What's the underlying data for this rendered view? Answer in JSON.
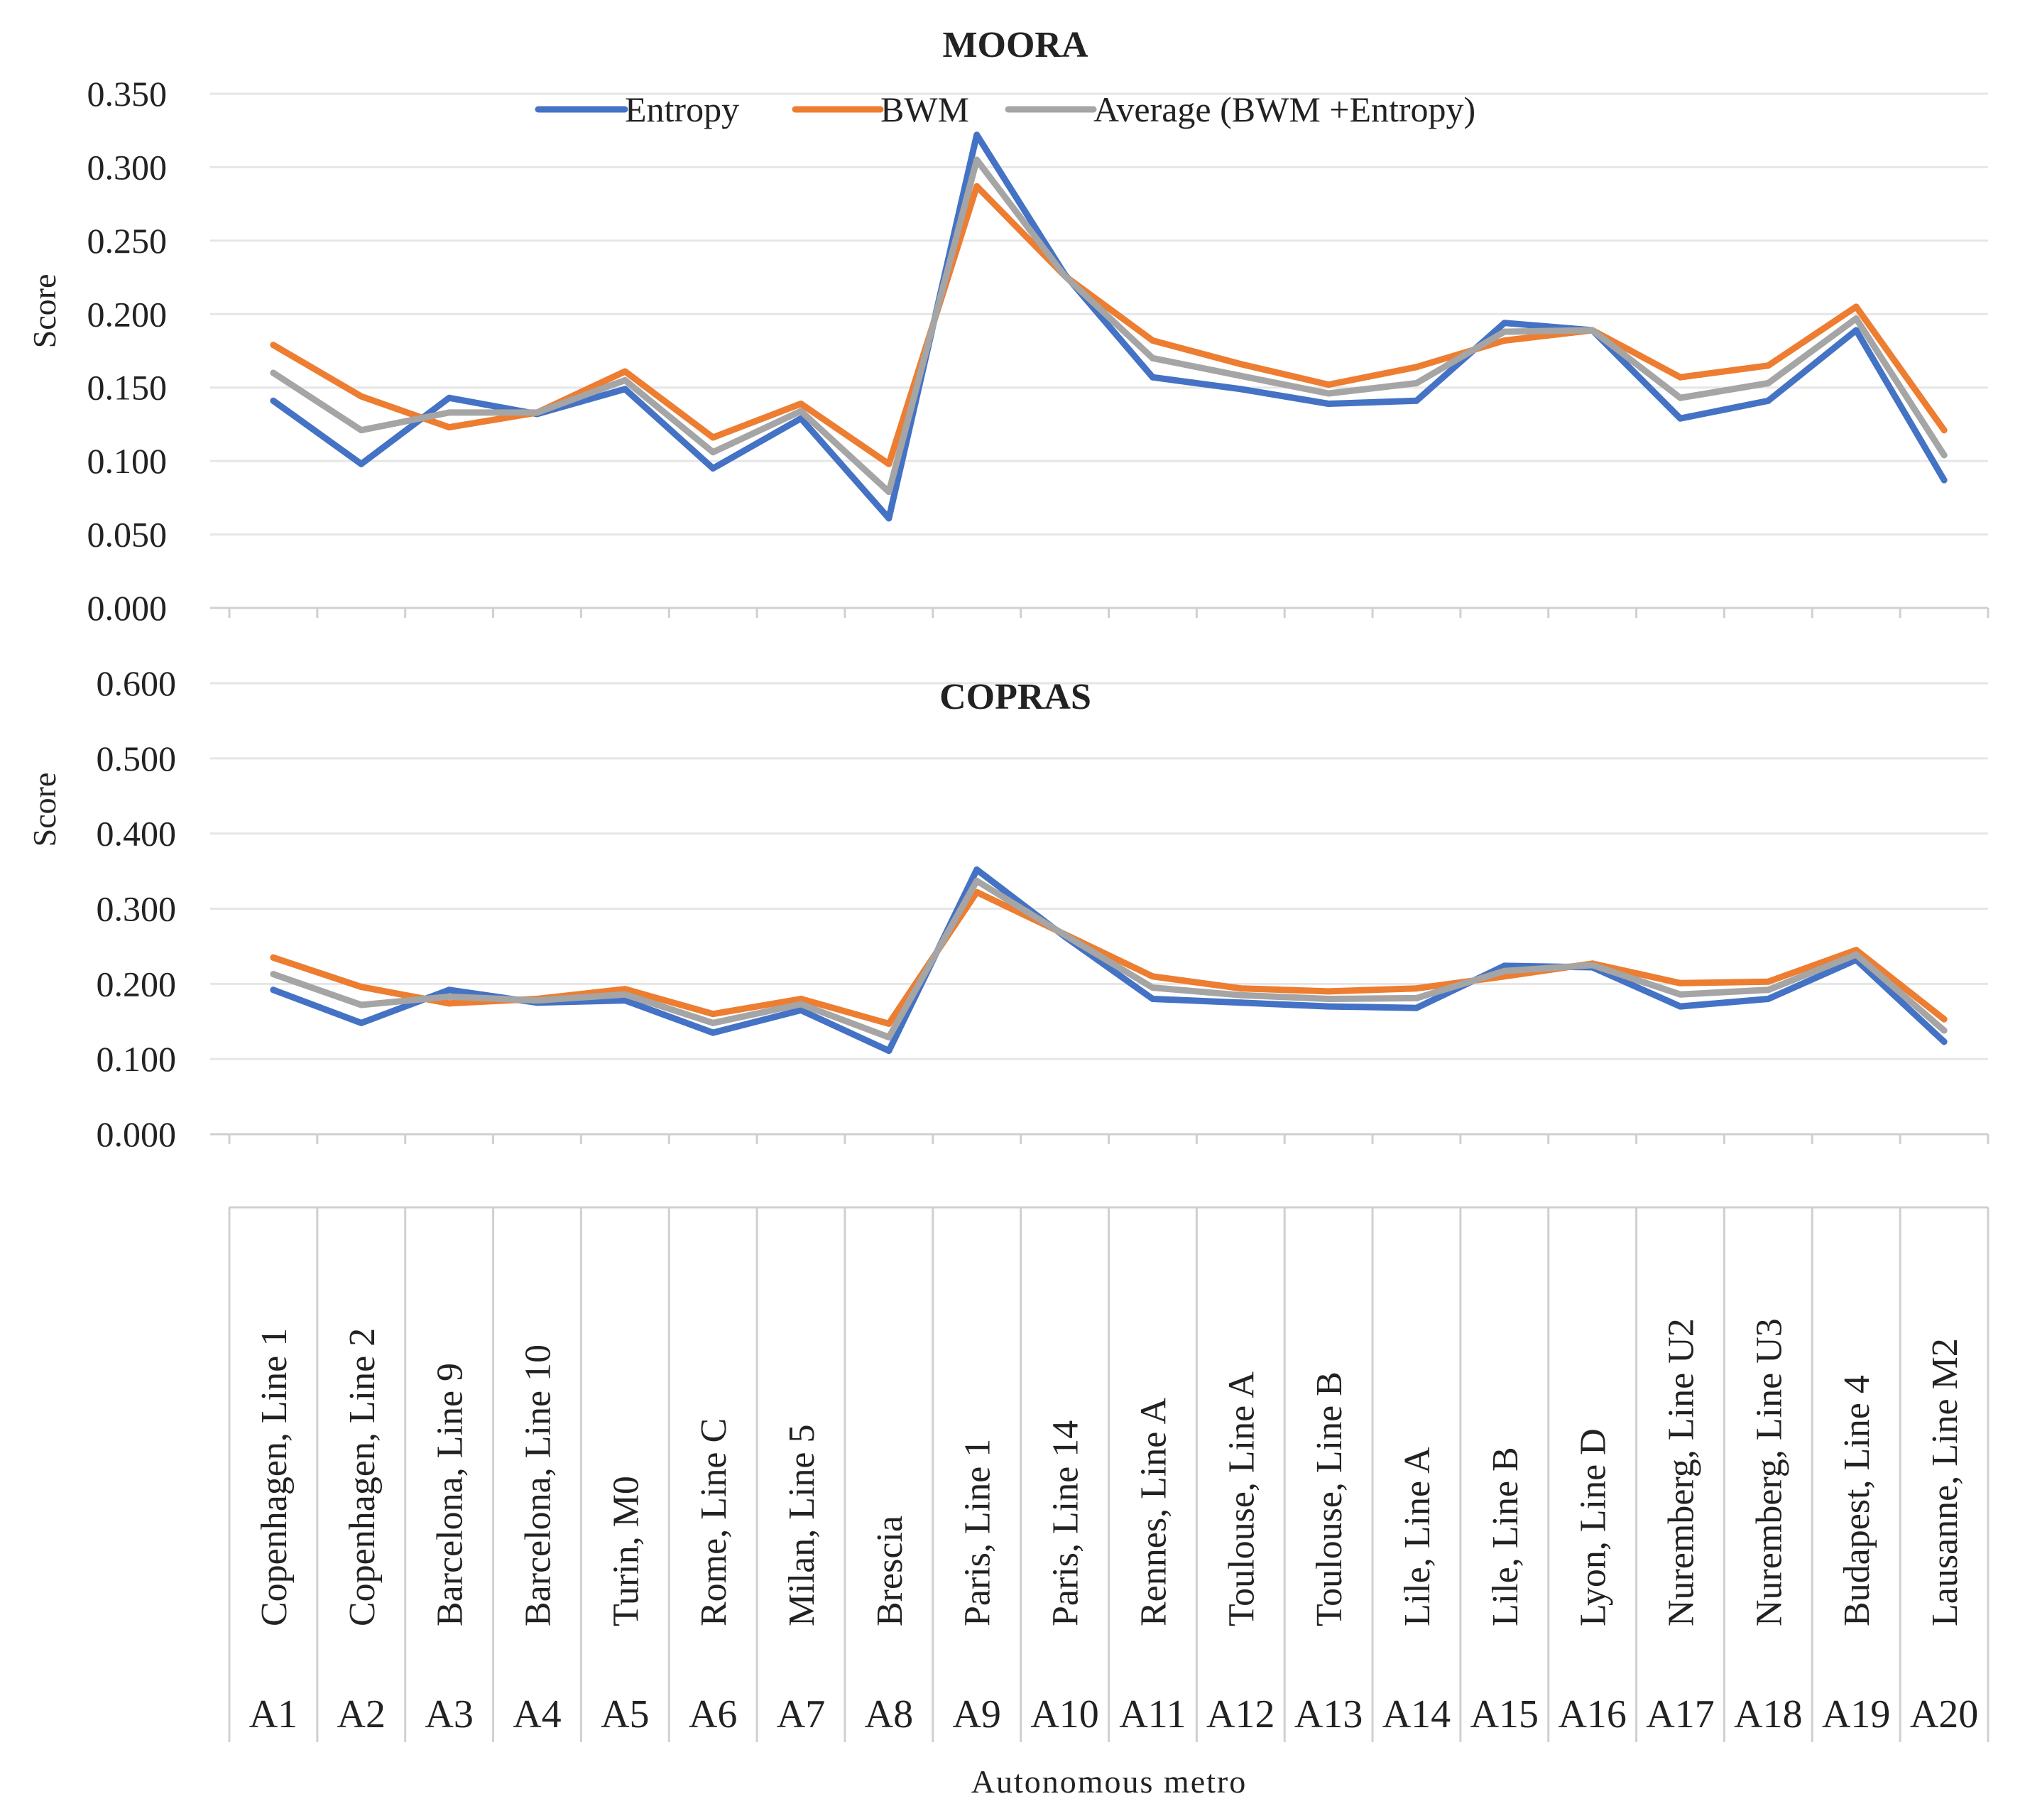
{
  "colors": {
    "entropy": "#4472C4",
    "bwm": "#ED7D31",
    "average": "#A5A5A5",
    "grid": "#E6E6E6",
    "axis": "#D0D0D0"
  },
  "legend": [
    "Entropy",
    "BWM",
    "Average (BWM +Entropy)"
  ],
  "x_axis": {
    "codes": [
      "A1",
      "A2",
      "A3",
      "A4",
      "A5",
      "A6",
      "A7",
      "A8",
      "A9",
      "A10",
      "A11",
      "A12",
      "A13",
      "A14",
      "A15",
      "A16",
      "A17",
      "A18",
      "A19",
      "A20"
    ],
    "names": [
      "Copenhagen, Line 1",
      "Copenhagen, Line 2",
      "Barcelona, Line 9",
      "Barcelona, Line 10",
      "Turin, M0",
      "Rome, Line C",
      "Milan, Line 5",
      "Brescia",
      "Paris, Line 1",
      "Paris, Line 14",
      "Rennes, Line A",
      "Toulouse, Line A",
      "Toulouse, Line B",
      "Lile, Line A",
      "Lile, Line B",
      "Lyon, Line D",
      "Nuremberg, Line U2",
      "Nuremberg, Line U3",
      "Budapest, Line 4",
      "Lausanne, Line M2"
    ],
    "label": "Autonomous metro"
  },
  "chart_data": [
    {
      "type": "line",
      "title": "MOORA",
      "ylabel": "Score",
      "ylim": [
        0,
        0.35
      ],
      "yticks": [
        "0.000",
        "0.050",
        "0.100",
        "0.150",
        "0.200",
        "0.250",
        "0.300",
        "0.350"
      ],
      "grid": true,
      "legend_position": "top",
      "categories": [
        "A1",
        "A2",
        "A3",
        "A4",
        "A5",
        "A6",
        "A7",
        "A8",
        "A9",
        "A10",
        "A11",
        "A12",
        "A13",
        "A14",
        "A15",
        "A16",
        "A17",
        "A18",
        "A19",
        "A20"
      ],
      "series": [
        {
          "name": "Entropy",
          "values": [
            0.141,
            0.098,
            0.143,
            0.132,
            0.149,
            0.095,
            0.129,
            0.061,
            0.322,
            0.227,
            0.157,
            0.149,
            0.139,
            0.141,
            0.194,
            0.189,
            0.129,
            0.141,
            0.189,
            0.087
          ]
        },
        {
          "name": "BWM",
          "values": [
            0.179,
            0.144,
            0.123,
            0.133,
            0.161,
            0.116,
            0.139,
            0.098,
            0.287,
            0.226,
            0.182,
            0.166,
            0.152,
            0.164,
            0.182,
            0.189,
            0.157,
            0.165,
            0.205,
            0.121
          ]
        },
        {
          "name": "Average (BWM +Entropy)",
          "values": [
            0.16,
            0.121,
            0.133,
            0.133,
            0.155,
            0.106,
            0.134,
            0.079,
            0.305,
            0.226,
            0.17,
            0.158,
            0.146,
            0.153,
            0.188,
            0.189,
            0.143,
            0.153,
            0.197,
            0.104
          ]
        }
      ]
    },
    {
      "type": "line",
      "title": "COPRAS",
      "ylabel": "Score",
      "ylim": [
        0,
        0.6
      ],
      "yticks": [
        "0.000",
        "0.100",
        "0.200",
        "0.300",
        "0.400",
        "0.500",
        "0.600"
      ],
      "grid": true,
      "categories": [
        "A1",
        "A2",
        "A3",
        "A4",
        "A5",
        "A6",
        "A7",
        "A8",
        "A9",
        "A10",
        "A11",
        "A12",
        "A13",
        "A14",
        "A15",
        "A16",
        "A17",
        "A18",
        "A19",
        "A20"
      ],
      "series": [
        {
          "name": "Entropy",
          "values": [
            0.192,
            0.148,
            0.192,
            0.175,
            0.178,
            0.135,
            0.165,
            0.111,
            0.352,
            0.263,
            0.18,
            0.175,
            0.17,
            0.168,
            0.224,
            0.222,
            0.17,
            0.18,
            0.232,
            0.123
          ]
        },
        {
          "name": "BWM",
          "values": [
            0.235,
            0.196,
            0.174,
            0.18,
            0.193,
            0.16,
            0.18,
            0.147,
            0.322,
            0.266,
            0.21,
            0.194,
            0.19,
            0.194,
            0.21,
            0.227,
            0.201,
            0.203,
            0.245,
            0.153
          ]
        },
        {
          "name": "Average (BWM +Entropy)",
          "values": [
            0.213,
            0.172,
            0.183,
            0.178,
            0.186,
            0.148,
            0.173,
            0.129,
            0.337,
            0.265,
            0.195,
            0.185,
            0.18,
            0.181,
            0.217,
            0.225,
            0.186,
            0.192,
            0.239,
            0.138
          ]
        }
      ]
    }
  ]
}
